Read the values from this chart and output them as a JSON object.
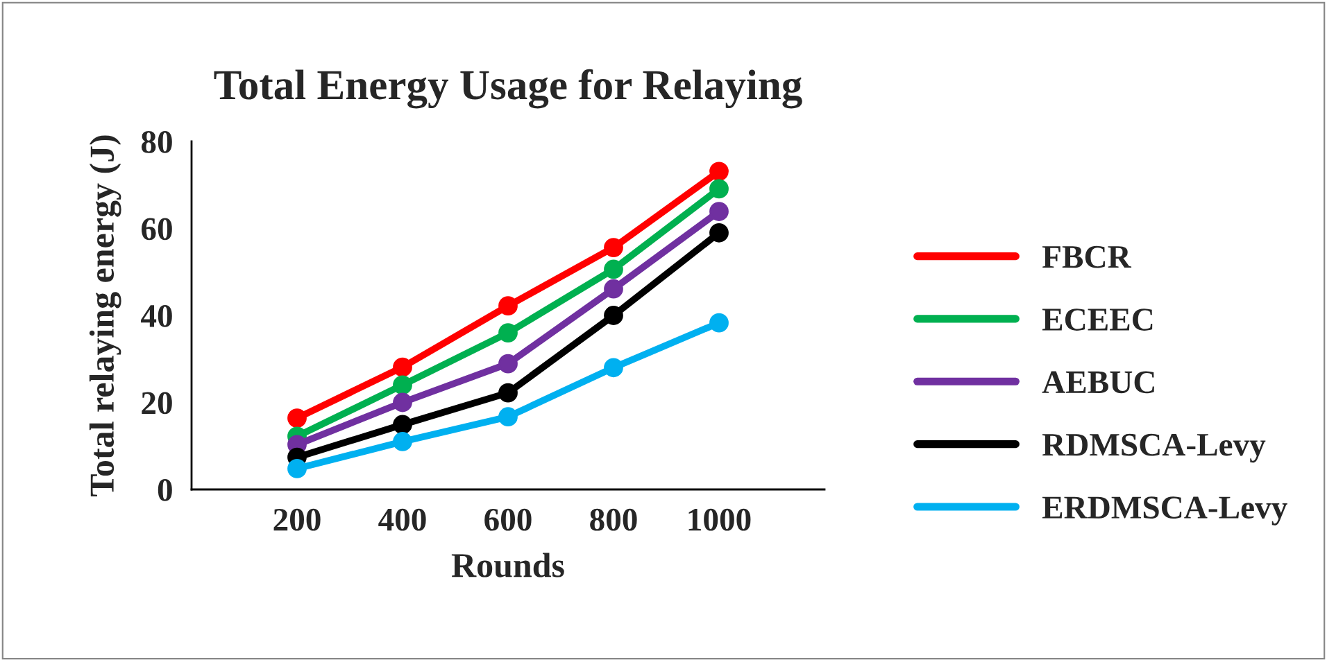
{
  "chart_data": {
    "type": "line",
    "title": "Total Energy Usage for Relaying",
    "xlabel": "Rounds",
    "ylabel": "Total relaying energy (J)",
    "categories": [
      null,
      "200",
      "400",
      "600",
      "800",
      "1000",
      null
    ],
    "series": [
      {
        "name": "FBCR",
        "color": "#ff0000",
        "values": [
          null,
          16.4,
          28.1,
          42.2,
          55.6,
          73.1,
          null
        ]
      },
      {
        "name": "ECEEC",
        "color": "#00b050",
        "values": [
          null,
          12.2,
          24.0,
          36.0,
          50.6,
          69.1,
          null
        ]
      },
      {
        "name": "AEBUC",
        "color": "#7030a0",
        "values": [
          null,
          10.3,
          20.0,
          28.9,
          46.1,
          63.9,
          null
        ]
      },
      {
        "name": "RDMSCA-Levy",
        "color": "#000000",
        "values": [
          null,
          7.4,
          14.9,
          22.2,
          40.0,
          59.0,
          null
        ]
      },
      {
        "name": "ERDMSCA-Levy",
        "color": "#00b0f0",
        "values": [
          null,
          4.8,
          11.0,
          16.7,
          28.0,
          38.3,
          null
        ]
      }
    ],
    "ylim": [
      0,
      80
    ],
    "yticks": [
      0,
      20,
      40,
      60,
      80
    ],
    "grid": false,
    "legend": "right",
    "marker": "circle",
    "line_style": "solid"
  }
}
